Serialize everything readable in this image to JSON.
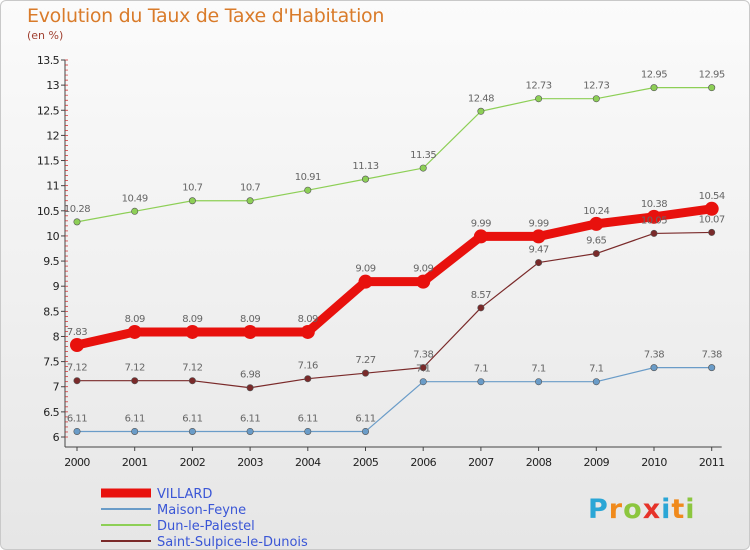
{
  "title": "Evolution du Taux de Taxe d'Habitation",
  "subtitle": "(en %)",
  "logo": [
    "P",
    "r",
    "o",
    "x",
    "i",
    "t",
    "i"
  ],
  "logo_colors": [
    "#2aa6d6",
    "#f08a1c",
    "#8cc63f",
    "#e6332a",
    "#2aa6d6",
    "#f08a1c",
    "#8cc63f"
  ],
  "chart_data": {
    "type": "line",
    "title": "Evolution du Taux de Taxe d'Habitation",
    "ylabel": "(en %)",
    "x": [
      "2000",
      "2001",
      "2002",
      "2003",
      "2004",
      "2005",
      "2006",
      "2007",
      "2008",
      "2009",
      "2010",
      "2011"
    ],
    "ylim": [
      6,
      13.5
    ],
    "yticks": [
      "6",
      "6.5",
      "7",
      "7.5",
      "8",
      "8.5",
      "9",
      "9.5",
      "10",
      "10.5",
      "11",
      "11.5",
      "12",
      "12.5",
      "13",
      "13.5"
    ],
    "series": [
      {
        "name": "VILLARD",
        "color": "#e8110d",
        "values": [
          7.83,
          8.09,
          8.09,
          8.09,
          8.09,
          9.09,
          9.09,
          9.99,
          9.99,
          10.24,
          10.38,
          10.54
        ],
        "labels": [
          "7.83",
          "8.09",
          "8.09",
          "8.09",
          "8.09",
          "9.09",
          "9.09",
          "9.99",
          "9.99",
          "10.24",
          "10.38",
          "10.54"
        ]
      },
      {
        "name": "Maison-Feyne",
        "color": "#6a9cc8",
        "values": [
          6.11,
          6.11,
          6.11,
          6.11,
          6.11,
          6.11,
          7.1,
          7.1,
          7.1,
          7.1,
          7.38,
          7.38
        ],
        "labels": [
          "6.11",
          "6.11",
          "6.11",
          "6.11",
          "6.11",
          "6.11",
          "7.1",
          "7.1",
          "7.1",
          "7.1",
          "7.38",
          "7.38"
        ]
      },
      {
        "name": "Dun-le-Palestel",
        "color": "#8dcf56",
        "values": [
          10.28,
          10.49,
          10.7,
          10.7,
          10.91,
          11.13,
          11.35,
          12.48,
          12.73,
          12.73,
          12.95,
          12.95
        ],
        "labels": [
          "10.28",
          "10.49",
          "10.7",
          "10.7",
          "10.91",
          "11.13",
          "11.35",
          "12.48",
          "12.73",
          "12.73",
          "12.95",
          "12.95"
        ]
      },
      {
        "name": "Saint-Sulpice-le-Dunois",
        "color": "#7a2a2a",
        "values": [
          7.12,
          7.12,
          7.12,
          6.98,
          7.16,
          7.27,
          7.38,
          8.57,
          9.47,
          9.65,
          10.05,
          10.07
        ],
        "labels": [
          "7.12",
          "7.12",
          "7.12",
          "6.98",
          "7.16",
          "7.27",
          "7.38",
          "8.57",
          "9.47",
          "9.65",
          "10.05",
          "10.07"
        ]
      }
    ],
    "legend_position": "bottom-left",
    "grid": false
  }
}
